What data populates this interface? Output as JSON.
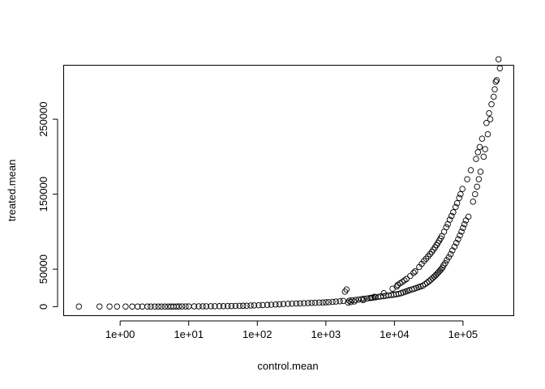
{
  "chart_data": {
    "type": "scatter",
    "title": "",
    "xlabel": "control.mean",
    "ylabel": "treated.mean",
    "xscale": "log",
    "xlim": [
      0.15,
      550000
    ],
    "ylim": [
      -12000,
      322000
    ],
    "xticks": [
      1,
      10,
      100,
      1000,
      10000,
      100000
    ],
    "xtick_labels": [
      "1e+00",
      "1e+01",
      "1e+02",
      "1e+03",
      "1e+04",
      "1e+05"
    ],
    "yticks": [
      0,
      50000,
      150000,
      250000
    ],
    "ytick_labels": [
      "0",
      "50000",
      "150000",
      "250000"
    ],
    "grid": false,
    "legend": "none",
    "marker": "open-circle",
    "series": [
      {
        "x": [
          0.25,
          0.5,
          0.7,
          0.9,
          1.2,
          1.5,
          1.8,
          2.1,
          2.5,
          2.8,
          3.2,
          3.6,
          4.0,
          4.5,
          5.0,
          5.5,
          6.0,
          6.6,
          7.2,
          8,
          9,
          10,
          12,
          14,
          16,
          18,
          21,
          24,
          28,
          32,
          37,
          42,
          48,
          55,
          62,
          70,
          80,
          90,
          105,
          120,
          140,
          160,
          185,
          210,
          240,
          280,
          320,
          370,
          420,
          480,
          550,
          620,
          700,
          800,
          900,
          1000,
          1100,
          1250,
          1400,
          1600,
          1800,
          1900,
          2000,
          2200,
          2400,
          2700,
          3000,
          3300,
          3600,
          4000,
          4400,
          4800,
          5300,
          5800,
          6300,
          6900,
          7500,
          8200,
          9000,
          9800,
          10600,
          11500,
          12500,
          13500,
          14500,
          15500,
          16500,
          18000,
          19500,
          21000,
          22500,
          24000,
          26000,
          28000,
          30000,
          32000,
          34000,
          36000,
          38000,
          40000,
          42000,
          44000,
          46000,
          48000,
          50000,
          52000,
          55000,
          58000,
          62000,
          66000,
          70000,
          75000,
          80000,
          85000,
          90000,
          95000,
          100000,
          105000,
          110000,
          120000,
          140000,
          150000,
          160000,
          170000,
          180000,
          200000,
          210000,
          230000,
          250000,
          280000,
          300000,
          330000,
          2100,
          2300,
          2600,
          3500,
          4600,
          5100,
          7000,
          9400,
          10800,
          11200,
          12000,
          13000,
          14000,
          15000,
          17000,
          19000,
          20000,
          23000,
          25000,
          27000,
          29000,
          31000,
          33000,
          35000,
          37000,
          39000,
          41000,
          43000,
          45000,
          47000,
          49000,
          53000,
          57000,
          60000,
          64000,
          68000,
          72000,
          78000,
          82000,
          88000,
          92000,
          98000,
          115000,
          130000,
          155000,
          165000,
          175000,
          190000,
          220000,
          240000,
          260000,
          290000,
          310000,
          345000
        ],
        "y": [
          200,
          200,
          200,
          200,
          200,
          200,
          200,
          200,
          200,
          200,
          200,
          200,
          200,
          200,
          200,
          200,
          200,
          200,
          250,
          300,
          300,
          350,
          400,
          400,
          450,
          500,
          550,
          600,
          650,
          700,
          800,
          900,
          1000,
          1100,
          1200,
          1300,
          1500,
          1700,
          1900,
          2100,
          2400,
          2600,
          2900,
          3200,
          3500,
          3800,
          4000,
          4200,
          4400,
          4600,
          4800,
          5000,
          5200,
          5400,
          5600,
          5800,
          6000,
          6400,
          6800,
          7200,
          7600,
          20000,
          23000,
          8000,
          8500,
          9000,
          9500,
          10000,
          10500,
          11000,
          11500,
          12000,
          12500,
          13000,
          13500,
          14000,
          14500,
          15000,
          15500,
          16000,
          16500,
          17000,
          18000,
          19000,
          20000,
          21000,
          22000,
          23000,
          24000,
          25000,
          26000,
          27000,
          28000,
          30000,
          32000,
          34000,
          36000,
          38000,
          40000,
          42000,
          44000,
          46000,
          48000,
          50000,
          52000,
          55000,
          58000,
          62000,
          66000,
          70000,
          75000,
          80000,
          85000,
          90000,
          95000,
          100000,
          105000,
          110000,
          115000,
          120000,
          140000,
          150000,
          160000,
          170000,
          180000,
          200000,
          210000,
          230000,
          250000,
          280000,
          300000,
          330000,
          5500,
          6100,
          6900,
          8800,
          11800,
          13200,
          18000,
          24000,
          27000,
          29000,
          31000,
          33000,
          35000,
          37000,
          41000,
          45000,
          47000,
          53000,
          57000,
          61000,
          64000,
          67000,
          70000,
          73000,
          76000,
          79000,
          82000,
          85000,
          88000,
          91000,
          94000,
          100000,
          106000,
          110000,
          116000,
          121000,
          126000,
          133000,
          138000,
          145000,
          150000,
          157000,
          170000,
          182000,
          197000,
          206000,
          213000,
          224000,
          245000,
          258000,
          270000,
          290000,
          302000,
          318000
        ]
      }
    ]
  }
}
